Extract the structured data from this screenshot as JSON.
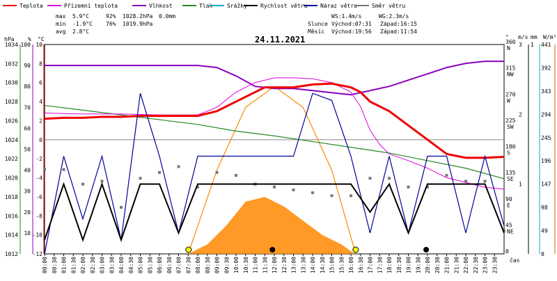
{
  "chart_data": {
    "type": "line",
    "title": "24.11.2021",
    "legend": [
      {
        "name": "Teplota",
        "color": "#ee0000"
      },
      {
        "name": "Přízemní teplota",
        "color": "#dd00dd"
      },
      {
        "name": "Vlhkost",
        "color": "#8800bb"
      },
      {
        "name": "Tlak",
        "color": "#228822"
      },
      {
        "name": "Srážky",
        "color": "#00aacc"
      },
      {
        "name": "Rychlost větru",
        "color": "#000000"
      },
      {
        "name": "Náraz větru",
        "color": "#000099"
      },
      {
        "name": "Směr větru",
        "color": "#777777"
      }
    ],
    "stats": {
      "max": {
        "label": "max",
        "temp": "5.9°C",
        "hum": "92%",
        "press": "1028.2hPa",
        "rain": "0.0mm"
      },
      "min": {
        "label": "min",
        "temp": "-1.9°C",
        "hum": "76%",
        "press": "1019.9hPa"
      },
      "avg": {
        "label": "avg",
        "temp": "2.8°C"
      }
    },
    "info": {
      "ws": "WS:1.4m/s",
      "wg": "WG:2.3m/s",
      "sun_label": "Slunce",
      "sunrise": "Východ:07:31",
      "sunset": "Západ:16:15",
      "moon_label": "Měsíc",
      "moonrise": "Východ:19:56",
      "moonset": "Západ:11:54"
    },
    "axes": {
      "hpa": {
        "label": "hPa",
        "ticks": [
          "1034",
          "1032",
          "1030",
          "1028",
          "1026",
          "1024",
          "1022",
          "1020",
          "1018",
          "1016",
          "1014",
          "1012"
        ]
      },
      "pct": {
        "label": "%",
        "ticks": [
          "100",
          "90",
          "80",
          "70",
          "60",
          "50",
          "40",
          "30",
          "20",
          "10"
        ]
      },
      "temp": {
        "label": "°C",
        "ticks": [
          "10",
          "8",
          "6",
          "4",
          "2",
          "0",
          "-2",
          "-4",
          "-6",
          "-8",
          "-10",
          "-12"
        ],
        "ylim": [
          -12,
          10
        ]
      },
      "dir": {
        "label": "°",
        "ticks": [
          "360",
          "315",
          "270",
          "225",
          "180",
          "135",
          "90",
          "45",
          "0"
        ],
        "names": [
          "N",
          "NW",
          "W",
          "SW",
          "S",
          "SE",
          "E",
          "NE",
          ""
        ]
      },
      "ms": {
        "label": "m/s",
        "ticks": [
          "3",
          "2",
          "1"
        ]
      },
      "mm": {
        "label": "mm",
        "ticks": [
          "1"
        ]
      },
      "wm2": {
        "label": "W/m²",
        "ticks": [
          "441",
          "392",
          "343",
          "294",
          "245",
          "196",
          "147",
          "98",
          "49",
          "0"
        ]
      },
      "x_label": "čas",
      "x_ticks": [
        "00:00",
        "00:30",
        "01:00",
        "01:30",
        "02:00",
        "02:30",
        "03:00",
        "03:30",
        "04:00",
        "04:30",
        "05:00",
        "05:30",
        "06:00",
        "06:30",
        "07:00",
        "07:30",
        "08:00",
        "08:30",
        "09:00",
        "09:30",
        "10:00",
        "10:30",
        "11:00",
        "11:30",
        "12:00",
        "12:30",
        "13:00",
        "13:30",
        "14:00",
        "14:30",
        "15:00",
        "15:30",
        "16:00",
        "16:30",
        "17:00",
        "17:30",
        "18:00",
        "18:30",
        "19:00",
        "19:30",
        "20:00",
        "20:30",
        "21:00",
        "21:30",
        "22:00",
        "22:30",
        "23:00",
        "23:30"
      ]
    },
    "series": {
      "temperature_c": [
        [
          0,
          2.2
        ],
        [
          1,
          2.3
        ],
        [
          2,
          2.3
        ],
        [
          3,
          2.4
        ],
        [
          4,
          2.4
        ],
        [
          5,
          2.5
        ],
        [
          6,
          2.5
        ],
        [
          7,
          2.5
        ],
        [
          8,
          2.5
        ],
        [
          9,
          3.0
        ],
        [
          10,
          4.0
        ],
        [
          11,
          5.0
        ],
        [
          11.5,
          5.5
        ],
        [
          12,
          5.5
        ],
        [
          13,
          5.5
        ],
        [
          14,
          5.8
        ],
        [
          15,
          5.9
        ],
        [
          16,
          5.5
        ],
        [
          16.5,
          5.0
        ],
        [
          17,
          4.0
        ],
        [
          18,
          3.0
        ],
        [
          19,
          1.5
        ],
        [
          20,
          0.0
        ],
        [
          21,
          -1.5
        ],
        [
          22,
          -1.9
        ],
        [
          23,
          -1.9
        ],
        [
          24,
          -1.8
        ]
      ],
      "ground_temp_c": [
        [
          0,
          2.8
        ],
        [
          2,
          2.7
        ],
        [
          4,
          2.7
        ],
        [
          6,
          2.6
        ],
        [
          8,
          2.6
        ],
        [
          9,
          3.4
        ],
        [
          10,
          5.0
        ],
        [
          11,
          6.0
        ],
        [
          12,
          6.5
        ],
        [
          13,
          6.5
        ],
        [
          14,
          6.4
        ],
        [
          15,
          6.0
        ],
        [
          16,
          5.0
        ],
        [
          16.5,
          3.5
        ],
        [
          17,
          1.0
        ],
        [
          17.5,
          -0.5
        ],
        [
          18,
          -1.5
        ],
        [
          19,
          -2.2
        ],
        [
          20,
          -3.0
        ],
        [
          21,
          -4.0
        ],
        [
          22,
          -4.5
        ],
        [
          23,
          -5.0
        ],
        [
          24,
          -5.2
        ]
      ],
      "humidity_pct": [
        [
          0,
          90
        ],
        [
          8,
          90
        ],
        [
          9,
          89
        ],
        [
          10,
          85
        ],
        [
          11,
          80
        ],
        [
          12,
          79
        ],
        [
          13,
          79
        ],
        [
          14,
          78
        ],
        [
          15,
          77
        ],
        [
          16,
          76
        ],
        [
          17,
          78
        ],
        [
          18,
          80
        ],
        [
          19,
          83
        ],
        [
          20,
          86
        ],
        [
          21,
          89
        ],
        [
          22,
          91
        ],
        [
          23,
          92
        ],
        [
          24,
          92
        ]
      ],
      "pressure_hpa": [
        [
          0,
          1027.6
        ],
        [
          2,
          1027.1
        ],
        [
          4,
          1026.6
        ],
        [
          6,
          1026.1
        ],
        [
          8,
          1025.6
        ],
        [
          10,
          1024.9
        ],
        [
          12,
          1024.4
        ],
        [
          14,
          1023.8
        ],
        [
          16,
          1023.2
        ],
        [
          18,
          1022.6
        ],
        [
          20,
          1021.8
        ],
        [
          22,
          1021.0
        ],
        [
          24,
          1019.9
        ]
      ],
      "solar_wm2": [
        [
          7.5,
          0
        ],
        [
          8.5,
          20
        ],
        [
          9.5,
          60
        ],
        [
          10.5,
          110
        ],
        [
          11.5,
          120
        ],
        [
          12.5,
          100
        ],
        [
          13.5,
          70
        ],
        [
          14.5,
          40
        ],
        [
          15.5,
          20
        ],
        [
          16.2,
          0
        ]
      ],
      "sun_elevation_pct": [
        [
          7.5,
          0
        ],
        [
          9,
          40
        ],
        [
          10.5,
          70
        ],
        [
          12,
          80
        ],
        [
          13.5,
          70
        ],
        [
          15,
          40
        ],
        [
          16.25,
          0
        ]
      ],
      "wind_speed_ms": [
        [
          0,
          0.2
        ],
        [
          1,
          1.0
        ],
        [
          2,
          0.2
        ],
        [
          3,
          1.0
        ],
        [
          4,
          0.2
        ],
        [
          5,
          1.0
        ],
        [
          6,
          1.0
        ],
        [
          7,
          0.3
        ],
        [
          8,
          1.0
        ],
        [
          9,
          1.0
        ],
        [
          10,
          1.0
        ],
        [
          11,
          1.0
        ],
        [
          12,
          1.0
        ],
        [
          13,
          1.0
        ],
        [
          14,
          1.0
        ],
        [
          15,
          1.0
        ],
        [
          16,
          1.0
        ],
        [
          17,
          0.6
        ],
        [
          18,
          1.0
        ],
        [
          19,
          0.3
        ],
        [
          20,
          1.0
        ],
        [
          21,
          1.0
        ],
        [
          22,
          1.0
        ],
        [
          23,
          1.0
        ],
        [
          24,
          0.3
        ]
      ],
      "wind_gust_ms": [
        [
          0,
          0
        ],
        [
          1,
          1.4
        ],
        [
          2,
          0.5
        ],
        [
          3,
          1.4
        ],
        [
          4,
          0.2
        ],
        [
          5,
          2.3
        ],
        [
          6,
          1.4
        ],
        [
          7,
          0.3
        ],
        [
          8,
          1.4
        ],
        [
          9,
          1.4
        ],
        [
          10,
          1.4
        ],
        [
          11,
          1.4
        ],
        [
          12,
          1.4
        ],
        [
          13,
          1.4
        ],
        [
          14,
          2.3
        ],
        [
          15,
          2.2
        ],
        [
          16,
          1.4
        ],
        [
          17,
          0.3
        ],
        [
          18,
          1.4
        ],
        [
          19,
          0.3
        ],
        [
          20,
          1.4
        ],
        [
          21,
          1.4
        ],
        [
          22,
          0.3
        ],
        [
          23,
          1.4
        ],
        [
          24,
          0.4
        ]
      ],
      "wind_dir_deg": [
        [
          0,
          145
        ],
        [
          1,
          145
        ],
        [
          2,
          120
        ],
        [
          3,
          125
        ],
        [
          4,
          80
        ],
        [
          5,
          130
        ],
        [
          6,
          140
        ],
        [
          7,
          150
        ],
        [
          8,
          115
        ],
        [
          9,
          140
        ],
        [
          10,
          135
        ],
        [
          11,
          120
        ],
        [
          12,
          115
        ],
        [
          13,
          110
        ],
        [
          14,
          105
        ],
        [
          15,
          100
        ],
        [
          16,
          100
        ],
        [
          17,
          130
        ],
        [
          18,
          130
        ],
        [
          19,
          115
        ],
        [
          20,
          115
        ],
        [
          21,
          135
        ],
        [
          22,
          125
        ],
        [
          23,
          125
        ],
        [
          24,
          40
        ]
      ]
    },
    "markers": {
      "sunrise_h": 7.52,
      "sunset_h": 16.25,
      "moonset_h": 11.9,
      "moonrise_h": 19.93
    }
  }
}
